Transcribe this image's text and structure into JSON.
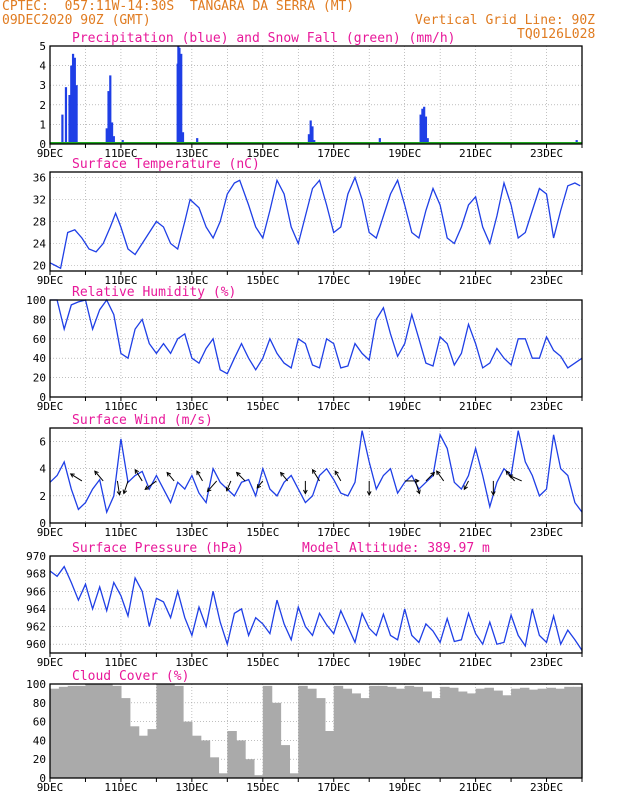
{
  "header": {
    "line1": "CPTEC:  057:11W-14:30S  TANGARA DA SERRA (MT)",
    "line2": "09DEC2020 90Z (GMT)",
    "grid_note": "Vertical Grid Line: 90Z",
    "code": "TQ0126L028"
  },
  "colors": {
    "title": "#e8189a",
    "header": "#e07b20",
    "line": "#1f3fe6",
    "snow": "#1fa81f",
    "cloud": "#aaaaaa"
  },
  "x_labels": [
    "9DEC",
    "11DEC",
    "13DEC",
    "15DEC",
    "17DEC",
    "19DEC",
    "21DEC",
    "23DEC"
  ],
  "chart_data": [
    {
      "type": "bar",
      "title": "Precipitation (blue) and Snow Fall (green) (mm/h)",
      "x_unit": "days since 9DEC 90Z",
      "xlim": [
        0,
        15
      ],
      "ylim": [
        0,
        5
      ],
      "yticks": [
        0,
        1,
        2,
        3,
        4,
        5
      ],
      "series": [
        {
          "name": "Precipitation",
          "color": "#1f3fe6",
          "x": [
            0.35,
            0.45,
            0.55,
            0.6,
            0.65,
            0.7,
            0.75,
            1.6,
            1.65,
            1.7,
            1.75,
            1.8,
            2.05,
            3.6,
            3.62,
            3.65,
            3.7,
            3.75,
            4.15,
            7.3,
            7.35,
            7.4,
            7.45,
            9.3,
            10.45,
            10.5,
            10.55,
            10.6,
            10.65,
            14.85
          ],
          "values": [
            1.5,
            2.9,
            2.5,
            4.0,
            4.6,
            4.4,
            3.0,
            0.8,
            2.7,
            3.5,
            1.1,
            0.4,
            0.2,
            4.1,
            5.0,
            4.9,
            4.6,
            0.6,
            0.3,
            0.5,
            1.2,
            0.9,
            0.2,
            0.3,
            1.5,
            1.8,
            1.9,
            1.4,
            0.3,
            0.2
          ]
        },
        {
          "name": "Snow Fall",
          "color": "#1fa81f",
          "x": [],
          "values": []
        }
      ]
    },
    {
      "type": "line",
      "title": "Surface Temperature (nC)",
      "xlim": [
        0,
        15
      ],
      "ylim": [
        19,
        37
      ],
      "yticks": [
        20,
        24,
        28,
        32,
        36
      ],
      "x": [
        0,
        0.15,
        0.3,
        0.5,
        0.7,
        0.9,
        1.1,
        1.3,
        1.5,
        1.7,
        1.85,
        2.0,
        2.2,
        2.4,
        2.6,
        2.8,
        3.0,
        3.2,
        3.4,
        3.6,
        3.8,
        3.95,
        4.2,
        4.4,
        4.6,
        4.8,
        5.0,
        5.2,
        5.35,
        5.6,
        5.8,
        6.0,
        6.2,
        6.4,
        6.6,
        6.8,
        7.0,
        7.2,
        7.4,
        7.6,
        7.8,
        8.0,
        8.2,
        8.4,
        8.6,
        8.8,
        9.0,
        9.2,
        9.4,
        9.6,
        9.8,
        10.0,
        10.2,
        10.4,
        10.6,
        10.8,
        11.0,
        11.2,
        11.4,
        11.6,
        11.8,
        12.0,
        12.2,
        12.4,
        12.6,
        12.8,
        13.0,
        13.2,
        13.4,
        13.6,
        13.8,
        14.0,
        14.2,
        14.4,
        14.6,
        14.8,
        14.95
      ],
      "values": [
        20.5,
        20,
        19.5,
        26,
        26.5,
        25,
        23,
        22.5,
        24,
        27,
        29.5,
        27,
        23,
        22,
        24,
        26,
        28,
        27,
        24,
        23,
        28,
        32,
        30.5,
        27,
        25,
        28,
        33,
        35,
        35.5,
        31,
        27,
        25,
        30,
        35.5,
        33,
        27,
        24,
        29,
        34,
        35.5,
        31,
        26,
        27,
        33,
        36,
        32,
        26,
        25,
        29,
        33,
        35.5,
        31,
        26,
        25,
        30,
        34,
        31,
        25,
        24,
        27,
        31,
        32.5,
        27,
        24,
        29,
        35,
        31,
        25,
        26,
        30,
        34,
        33,
        25,
        30,
        34.5,
        35,
        34.5
      ]
    },
    {
      "type": "line",
      "title": "Relative Humidity (%)",
      "xlim": [
        0,
        15
      ],
      "ylim": [
        0,
        100
      ],
      "yticks": [
        0,
        20,
        40,
        60,
        80,
        100
      ],
      "x": [
        0,
        0.2,
        0.4,
        0.6,
        0.8,
        1.0,
        1.2,
        1.4,
        1.6,
        1.8,
        2.0,
        2.2,
        2.4,
        2.6,
        2.8,
        3.0,
        3.2,
        3.4,
        3.6,
        3.8,
        4.0,
        4.2,
        4.4,
        4.6,
        4.8,
        5.0,
        5.2,
        5.4,
        5.6,
        5.8,
        6.0,
        6.2,
        6.4,
        6.6,
        6.8,
        7.0,
        7.2,
        7.4,
        7.6,
        7.8,
        8.0,
        8.2,
        8.4,
        8.6,
        8.8,
        9.0,
        9.2,
        9.4,
        9.6,
        9.8,
        10.0,
        10.2,
        10.4,
        10.6,
        10.8,
        11.0,
        11.2,
        11.4,
        11.6,
        11.8,
        12.0,
        12.2,
        12.4,
        12.6,
        12.8,
        13.0,
        13.2,
        13.4,
        13.6,
        13.8,
        14.0,
        14.2,
        14.4,
        14.6,
        14.8,
        15.0
      ],
      "values": [
        100,
        100,
        70,
        95,
        98,
        100,
        70,
        90,
        100,
        85,
        45,
        40,
        70,
        80,
        55,
        45,
        55,
        45,
        60,
        65,
        40,
        35,
        50,
        60,
        28,
        24,
        40,
        55,
        40,
        28,
        40,
        60,
        45,
        35,
        30,
        60,
        55,
        33,
        30,
        60,
        55,
        30,
        32,
        55,
        45,
        38,
        80,
        92,
        65,
        42,
        55,
        85,
        60,
        35,
        32,
        62,
        55,
        33,
        45,
        75,
        55,
        30,
        35,
        50,
        40,
        33,
        60,
        60,
        40,
        40,
        62,
        48,
        42,
        30,
        35,
        40
      ]
    },
    {
      "type": "line",
      "title": "Surface Wind (m/s)",
      "xlim": [
        0,
        15
      ],
      "ylim": [
        0,
        7
      ],
      "yticks": [
        0,
        2,
        4,
        6
      ],
      "x": [
        0,
        0.2,
        0.4,
        0.6,
        0.8,
        1.0,
        1.2,
        1.4,
        1.6,
        1.8,
        2.0,
        2.2,
        2.4,
        2.6,
        2.8,
        3.0,
        3.2,
        3.4,
        3.6,
        3.8,
        4.0,
        4.2,
        4.4,
        4.6,
        4.8,
        5.0,
        5.2,
        5.4,
        5.6,
        5.8,
        6.0,
        6.2,
        6.4,
        6.6,
        6.8,
        7.0,
        7.2,
        7.4,
        7.6,
        7.8,
        8.0,
        8.2,
        8.4,
        8.6,
        8.8,
        9.0,
        9.2,
        9.4,
        9.6,
        9.8,
        10.0,
        10.2,
        10.4,
        10.6,
        10.8,
        11.0,
        11.2,
        11.4,
        11.6,
        11.8,
        12.0,
        12.2,
        12.4,
        12.6,
        12.8,
        13.0,
        13.2,
        13.4,
        13.6,
        13.8,
        14.0,
        14.2,
        14.4,
        14.6,
        14.8,
        15.0
      ],
      "values": [
        3,
        3.5,
        4.5,
        2.5,
        1,
        1.5,
        2.5,
        3.2,
        0.8,
        2,
        6.2,
        3,
        3.5,
        3.8,
        2.5,
        3.5,
        2.5,
        1.5,
        3,
        2.5,
        3.5,
        2.2,
        1.5,
        4,
        3,
        2.5,
        2,
        3,
        3.2,
        2,
        4,
        2.5,
        2,
        3,
        3.5,
        2.5,
        1.5,
        2,
        3.5,
        4,
        3.2,
        2.2,
        2,
        3,
        6.8,
        4.5,
        2.5,
        3.5,
        4,
        2.2,
        3,
        3.5,
        2.5,
        3,
        3.5,
        6.5,
        5.5,
        3,
        2.5,
        3.5,
        5.5,
        3.5,
        1.2,
        3,
        4,
        3.5,
        6.8,
        4.5,
        3.5,
        2,
        2.5,
        6.5,
        4,
        3.5,
        1.5,
        0.8
      ],
      "arrows": {
        "x": [
          0.9,
          1.5,
          1.9,
          2.2,
          2.6,
          3.0,
          3.5,
          4.3,
          4.7,
          5.1,
          5.5,
          6.0,
          6.7,
          7.2,
          7.6,
          8.2,
          9.0,
          10.0,
          10.3,
          10.6,
          11.1,
          11.8,
          12.5,
          13.1,
          13.3
        ],
        "u": [
          -0.8,
          -0.6,
          0.2,
          -0.3,
          -0.5,
          -0.8,
          -0.5,
          -0.4,
          -0.7,
          -0.3,
          -0.6,
          -0.4,
          -0.5,
          0.0,
          -0.5,
          -0.4,
          0.0,
          1.0,
          0.3,
          0.6,
          -0.5,
          -0.3,
          0.0,
          -0.6,
          -0.9
        ],
        "v": [
          0.5,
          0.7,
          -1.3,
          -0.9,
          0.8,
          -0.6,
          0.6,
          0.7,
          -0.8,
          -0.7,
          0.6,
          -0.5,
          0.6,
          -0.9,
          0.8,
          0.7,
          -1.7,
          0.0,
          -0.9,
          0.6,
          0.7,
          -0.6,
          -1.6,
          0.7,
          0.4
        ]
      }
    },
    {
      "type": "line",
      "title": "Surface Pressure (hPa)",
      "note": "Model Altitude: 389.97 m",
      "xlim": [
        0,
        15
      ],
      "ylim": [
        959,
        970
      ],
      "yticks": [
        960,
        962,
        964,
        966,
        968,
        970
      ],
      "x": [
        0,
        0.2,
        0.4,
        0.6,
        0.8,
        1.0,
        1.2,
        1.4,
        1.6,
        1.8,
        2.0,
        2.2,
        2.4,
        2.6,
        2.8,
        3.0,
        3.2,
        3.4,
        3.6,
        3.8,
        4.0,
        4.2,
        4.4,
        4.6,
        4.8,
        5.0,
        5.2,
        5.4,
        5.6,
        5.8,
        6.0,
        6.2,
        6.4,
        6.6,
        6.8,
        7.0,
        7.2,
        7.4,
        7.6,
        7.8,
        8.0,
        8.2,
        8.4,
        8.6,
        8.8,
        9.0,
        9.2,
        9.4,
        9.6,
        9.8,
        10.0,
        10.2,
        10.4,
        10.6,
        10.8,
        11.0,
        11.2,
        11.4,
        11.6,
        11.8,
        12.0,
        12.2,
        12.4,
        12.6,
        12.8,
        13.0,
        13.2,
        13.4,
        13.6,
        13.8,
        14.0,
        14.2,
        14.4,
        14.6,
        14.8,
        15.0
      ],
      "values": [
        968.3,
        967.7,
        968.8,
        967,
        965,
        966.8,
        964,
        966.5,
        963.8,
        967,
        965.5,
        963.2,
        967.5,
        966,
        962,
        965.2,
        964.8,
        963,
        966,
        963,
        961,
        964.2,
        962,
        966,
        962.5,
        960,
        963.5,
        964,
        961,
        963,
        962.3,
        961.2,
        965,
        962.3,
        960.5,
        964.2,
        962,
        961,
        963.5,
        962.2,
        961.2,
        963.8,
        962,
        960.2,
        963.5,
        961.8,
        961,
        963.4,
        961,
        960.5,
        964,
        961,
        960.2,
        962.3,
        961.5,
        960.2,
        962.9,
        960.3,
        960.5,
        963.5,
        961.2,
        960,
        962.5,
        960,
        960.2,
        963.3,
        961,
        959.8,
        964,
        961,
        960.2,
        963.2,
        960,
        961.6,
        960.5,
        959.3
      ]
    },
    {
      "type": "bar",
      "title": "Cloud Cover (%)",
      "xlim": [
        0,
        15
      ],
      "ylim": [
        0,
        100
      ],
      "yticks": [
        0,
        20,
        40,
        60,
        80,
        100
      ],
      "x": [
        0,
        0.25,
        0.5,
        0.75,
        1.0,
        1.25,
        1.5,
        1.75,
        2.0,
        2.25,
        2.5,
        2.75,
        3.0,
        3.25,
        3.5,
        3.75,
        4.0,
        4.25,
        4.5,
        4.75,
        5.0,
        5.25,
        5.5,
        5.75,
        6.0,
        6.25,
        6.5,
        6.75,
        7.0,
        7.25,
        7.5,
        7.75,
        8.0,
        8.25,
        8.5,
        8.75,
        9.0,
        9.25,
        9.5,
        9.75,
        10.0,
        10.25,
        10.5,
        10.75,
        11.0,
        11.25,
        11.5,
        11.75,
        12.0,
        12.25,
        12.5,
        12.75,
        13.0,
        13.25,
        13.5,
        13.75,
        14.0,
        14.25,
        14.5,
        14.75
      ],
      "values": [
        95,
        97,
        98,
        98,
        100,
        100,
        100,
        98,
        85,
        55,
        45,
        52,
        100,
        100,
        98,
        60,
        45,
        40,
        22,
        5,
        50,
        40,
        20,
        3,
        98,
        80,
        35,
        5,
        98,
        95,
        85,
        50,
        98,
        95,
        90,
        85,
        98,
        98,
        97,
        95,
        98,
        97,
        92,
        85,
        97,
        96,
        92,
        90,
        95,
        96,
        93,
        88,
        95,
        96,
        94,
        95,
        96,
        95,
        97,
        97
      ]
    }
  ]
}
